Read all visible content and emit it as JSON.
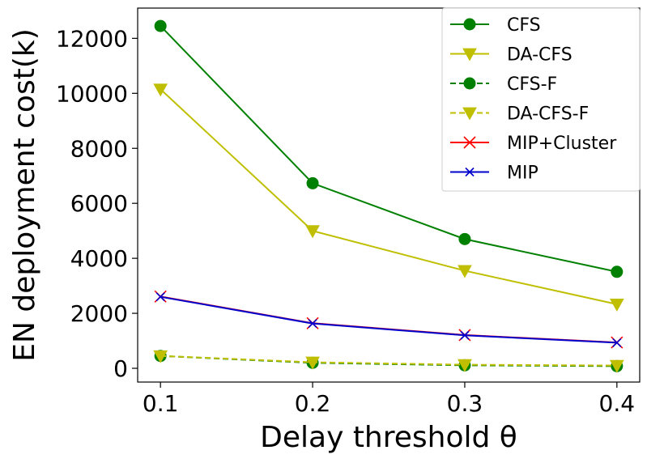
{
  "chart_data": {
    "type": "line",
    "xlabel": "Delay threshold θ",
    "ylabel": "EN deployment cost(k)",
    "x": [
      0.1,
      0.2,
      0.3,
      0.4
    ],
    "x_ticks": [
      "0.1",
      "0.2",
      "0.3",
      "0.4"
    ],
    "xlim": [
      0.085,
      0.415
    ],
    "y_ticks": [
      "0",
      "2000",
      "4000",
      "6000",
      "8000",
      "10000",
      "12000"
    ],
    "ylim": [
      -500,
      13100
    ],
    "grid": false,
    "legend_position": "top-right",
    "series": [
      {
        "name": "CFS",
        "values": [
          12450,
          6730,
          4700,
          3510
        ],
        "color": "#008000",
        "marker": "circle",
        "line": "solid"
      },
      {
        "name": "DA-CFS",
        "values": [
          10150,
          5000,
          3550,
          2330
        ],
        "color": "#bfbf00",
        "marker": "triangle-down",
        "line": "solid"
      },
      {
        "name": "CFS-F",
        "values": [
          450,
          200,
          110,
          80
        ],
        "color": "#008000",
        "marker": "circle",
        "line": "dashed"
      },
      {
        "name": "DA-CFS-F",
        "values": [
          450,
          220,
          130,
          100
        ],
        "color": "#bfbf00",
        "marker": "triangle-down",
        "line": "dashed"
      },
      {
        "name": "MIP+Cluster",
        "values": [
          2610,
          1640,
          1210,
          940
        ],
        "color": "#ff0000",
        "marker": "x",
        "line": "solid"
      },
      {
        "name": "MIP",
        "values": [
          2600,
          1630,
          1200,
          930
        ],
        "color": "#0000cc",
        "marker": "x-small",
        "line": "solid"
      }
    ]
  }
}
